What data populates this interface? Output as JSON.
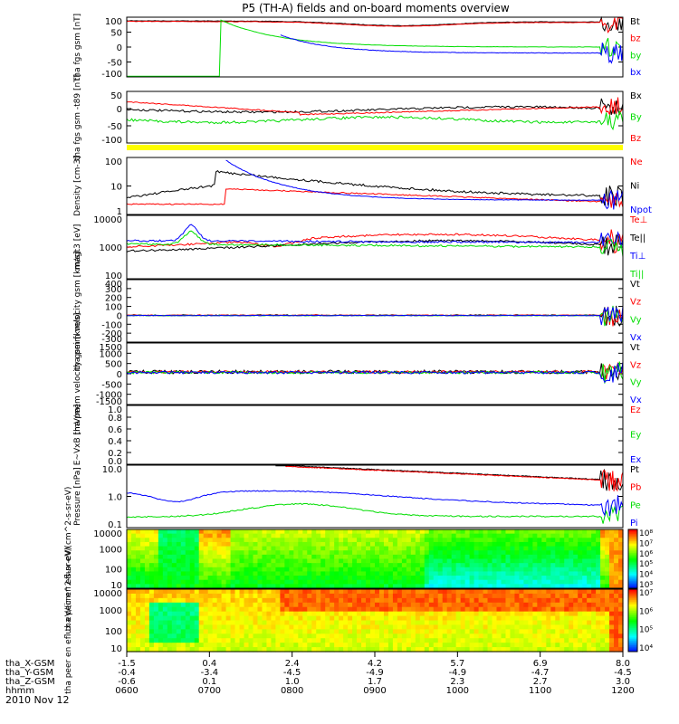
{
  "title": "P5 (TH-A) fields and on-board moments overview",
  "date": "2010 Nov 12",
  "colors": {
    "black": "#000000",
    "red": "#ff0000",
    "green": "#00dd00",
    "blue": "#0000ff",
    "status": "#ffff00"
  },
  "chart_data": [
    {
      "type": "line",
      "ylabel": "tha fgs gsm [nT]",
      "ylim": [
        -100,
        100
      ],
      "yticks": [
        "100",
        "50",
        "0",
        "-50",
        "-100"
      ],
      "series": [
        {
          "name": "Bt",
          "color": "black"
        },
        {
          "name": "bz",
          "color": "red"
        },
        {
          "name": "by",
          "color": "green"
        },
        {
          "name": "bx",
          "color": "blue"
        }
      ]
    },
    {
      "type": "line",
      "ylabel": "tha fgs gsm -t89 [nT]",
      "ylim": [
        -125,
        75
      ],
      "yticks": [
        "50",
        "0",
        "-50",
        "-100"
      ],
      "series": [
        {
          "name": "Bx",
          "color": "black"
        },
        {
          "name": "By",
          "color": "green"
        },
        {
          "name": "Bz",
          "color": "red"
        }
      ]
    },
    {
      "type": "line",
      "ylabel": "Density [cm-3]",
      "scale": "log",
      "yticks": [
        "100",
        "10",
        "1"
      ],
      "series": [
        {
          "name": "Ne",
          "color": "red"
        },
        {
          "name": "Ni",
          "color": "black"
        },
        {
          "name": "Npot",
          "color": "blue"
        }
      ]
    },
    {
      "type": "line",
      "ylabel": "magt3 [eV]",
      "scale": "log",
      "yticks": [
        "10000",
        "1000",
        "100"
      ],
      "series": [
        {
          "name": "Te⊥",
          "color": "red"
        },
        {
          "name": "Te||",
          "color": "black"
        },
        {
          "name": "Ti⊥",
          "color": "blue"
        },
        {
          "name": "Ti||",
          "color": "green"
        }
      ]
    },
    {
      "type": "line",
      "ylabel": "tha peim velocity gsm [km/s]",
      "ylim": [
        -300,
        400
      ],
      "yticks": [
        "400",
        "300",
        "200",
        "100",
        "0",
        "-100",
        "-200",
        "-300"
      ],
      "series": [
        {
          "name": "Vt",
          "color": "black"
        },
        {
          "name": "Vz",
          "color": "red"
        },
        {
          "name": "Vy",
          "color": "green"
        },
        {
          "name": "Vx",
          "color": "blue"
        }
      ]
    },
    {
      "type": "line",
      "ylabel": "tha peem velocity gsm [km/s]",
      "ylim": [
        -1500,
        1500
      ],
      "yticks": [
        "1500",
        "1000",
        "500",
        "0",
        "-500",
        "-1000",
        "-1500"
      ],
      "series": [
        {
          "name": "Vt",
          "color": "black"
        },
        {
          "name": "Vz",
          "color": "red"
        },
        {
          "name": "Vy",
          "color": "green"
        },
        {
          "name": "Vx",
          "color": "blue"
        }
      ]
    },
    {
      "type": "line",
      "ylabel": "E~VxB [mV/m]",
      "ylim": [
        0,
        1
      ],
      "yticks": [
        "1.0",
        "0.8",
        "0.6",
        "0.4",
        "0.2",
        "0.0"
      ],
      "series": [
        {
          "name": "Ez",
          "color": "red"
        },
        {
          "name": "Ey",
          "color": "green"
        },
        {
          "name": "Ex",
          "color": "blue"
        }
      ]
    },
    {
      "type": "line",
      "ylabel": "Pressure [nPa]",
      "scale": "log",
      "yticks": [
        "10.0",
        "1.0",
        "0.1"
      ],
      "series": [
        {
          "name": "Pt",
          "color": "black"
        },
        {
          "name": "Pb",
          "color": "red"
        },
        {
          "name": "Pe",
          "color": "green"
        },
        {
          "name": "Pi",
          "color": "blue"
        }
      ]
    },
    {
      "type": "heatmap",
      "ylabel": "tha peir en eflux eV/(cm^2-s-sr-eV)",
      "scale": "log",
      "yticks": [
        "10000",
        "1000",
        "100",
        "10"
      ],
      "colorbar_ticks": [
        "10⁸",
        "10⁷",
        "10⁶",
        "10⁵",
        "10⁴",
        "10³"
      ]
    },
    {
      "type": "heatmap",
      "ylabel": "tha peer en eflux eV/(cm^2-s-sr-eV)",
      "scale": "log",
      "yticks": [
        "10000",
        "1000",
        "100",
        "10"
      ],
      "colorbar_ticks": [
        "10⁷",
        "10⁶",
        "10⁵",
        "10⁴"
      ]
    }
  ],
  "xaxis": {
    "rows": [
      {
        "label": "tha_X-GSM",
        "values": [
          "-1.5",
          "0.4",
          "2.4",
          "4.2",
          "5.7",
          "6.9",
          "8.0"
        ]
      },
      {
        "label": "tha_Y-GSM",
        "values": [
          "-0.4",
          "-3.4",
          "-4.5",
          "-4.9",
          "-4.9",
          "-4.7",
          "-4.5"
        ]
      },
      {
        "label": "tha_Z-GSM",
        "values": [
          "-0.6",
          "0.1",
          "1.0",
          "1.7",
          "2.3",
          "2.7",
          "3.0"
        ]
      },
      {
        "label": "hhmm",
        "values": [
          "0600",
          "0700",
          "0800",
          "0900",
          "1000",
          "1100",
          "1200"
        ]
      }
    ]
  }
}
